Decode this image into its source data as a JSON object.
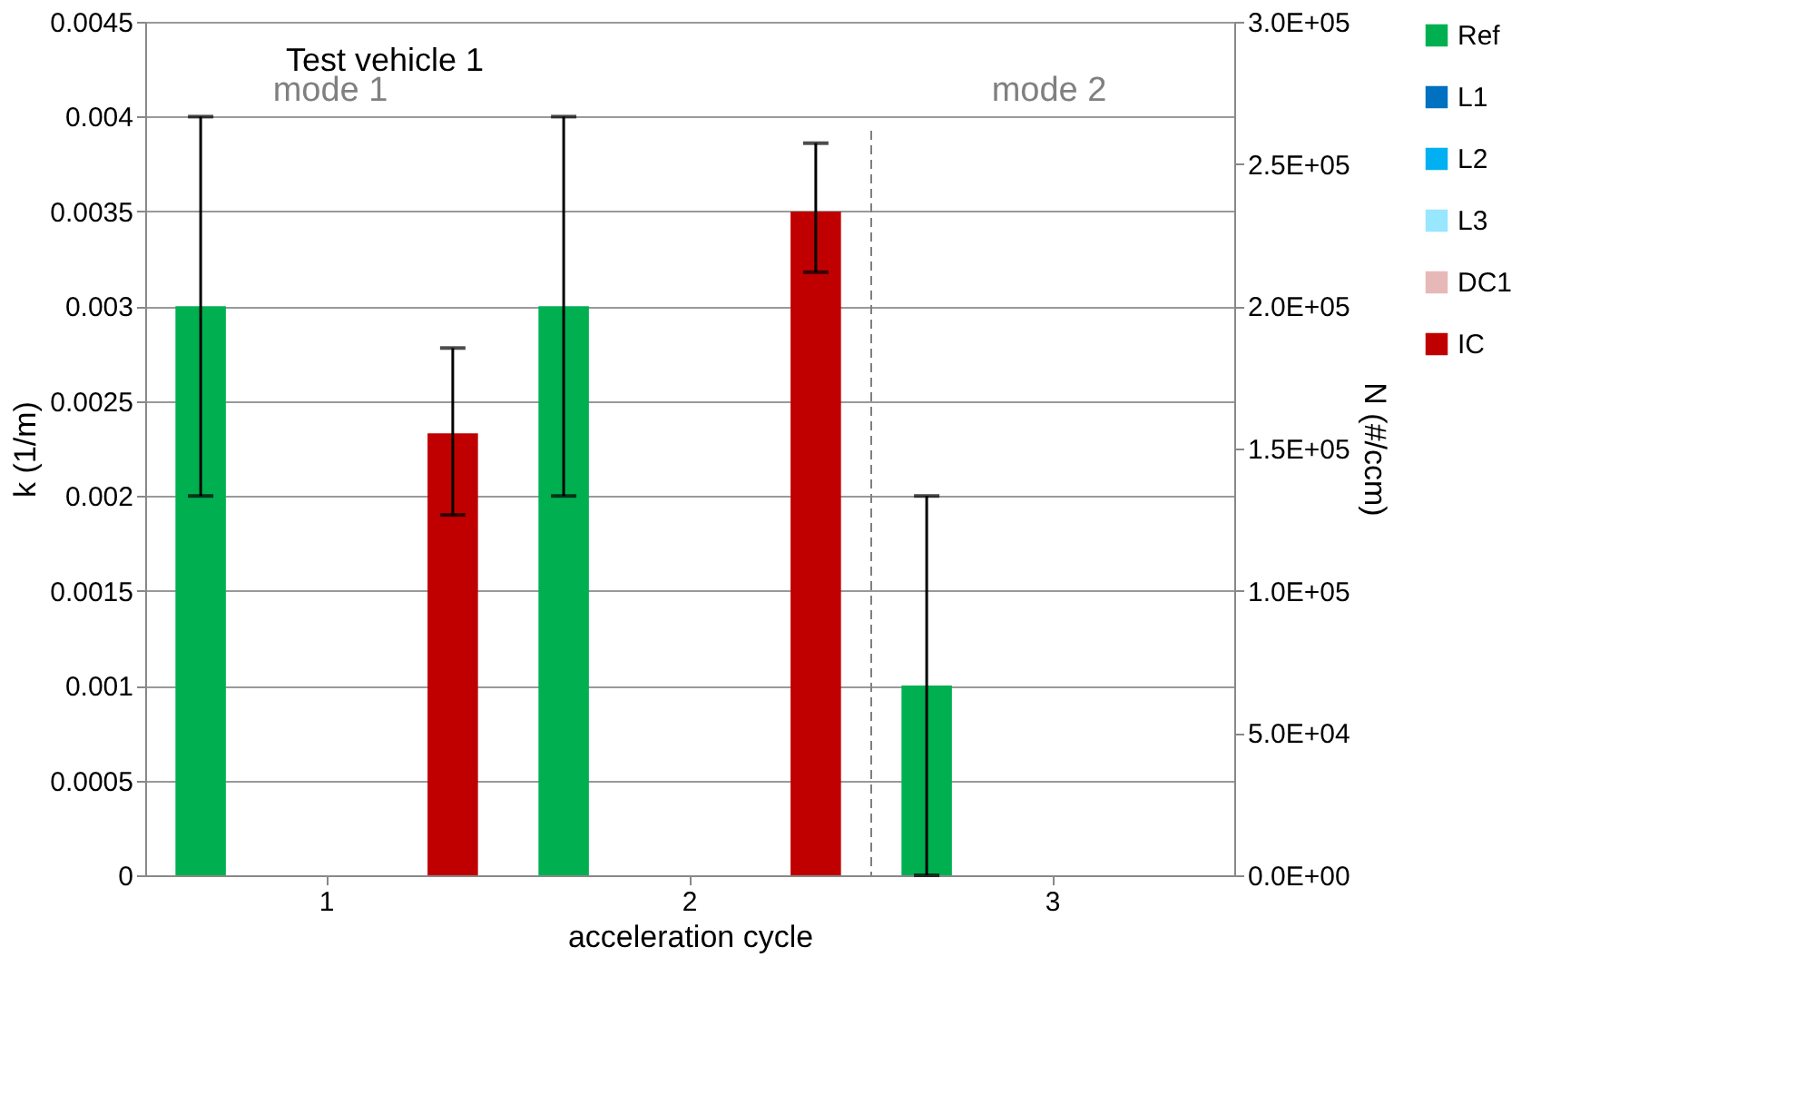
{
  "chart_data": {
    "type": "bar",
    "title": "Test vehicle 1",
    "xlabel": "acceleration cycle",
    "ylabel": "k (1/m)",
    "y2label": "N (#/ccm)",
    "categories": [
      "1",
      "2",
      "3"
    ],
    "series": [
      {
        "name": "Ref",
        "color": "#00b050",
        "values": [
          0.003,
          0.003,
          0.001
        ],
        "errors": [
          0.001,
          0.001,
          0.001
        ]
      },
      {
        "name": "L1",
        "color": "#0070c0",
        "values": [
          null,
          null,
          null
        ]
      },
      {
        "name": "L2",
        "color": "#00b0f0",
        "values": [
          null,
          null,
          null
        ]
      },
      {
        "name": "L3",
        "color": "#99e6ff",
        "values": [
          null,
          null,
          null
        ]
      },
      {
        "name": "DC1",
        "color": "#e6b9b8",
        "values": [
          null,
          null,
          null
        ]
      },
      {
        "name": "IC",
        "color": "#c00000",
        "values": [
          0.00233,
          0.0035,
          null
        ],
        "errors": [
          [
            0.0019,
            0.00278
          ],
          [
            0.00318,
            0.00386
          ],
          null
        ]
      }
    ],
    "ylim": [
      0,
      0.0045
    ],
    "yticks": [
      0,
      0.0005,
      0.001,
      0.0015,
      0.002,
      0.0025,
      0.003,
      0.0035,
      0.004,
      0.0045
    ],
    "y2lim": [
      0,
      300000
    ],
    "y2ticks": [
      {
        "value": 0,
        "label": "0.0E+00"
      },
      {
        "value": 50000,
        "label": "5.0E+04"
      },
      {
        "value": 100000,
        "label": "1.0E+05"
      },
      {
        "value": 150000,
        "label": "1.5E+05"
      },
      {
        "value": 200000,
        "label": "2.0E+05"
      },
      {
        "value": 250000,
        "label": "2.5E+05"
      },
      {
        "value": 300000,
        "label": "3.0E+05"
      }
    ],
    "annotations": [
      "mode 1",
      "mode 2"
    ],
    "ref_lines": [
      {
        "axis": "x",
        "value": "3",
        "line_style": "dashed",
        "color": "#808080"
      }
    ],
    "grid": "y",
    "legend": "right"
  }
}
